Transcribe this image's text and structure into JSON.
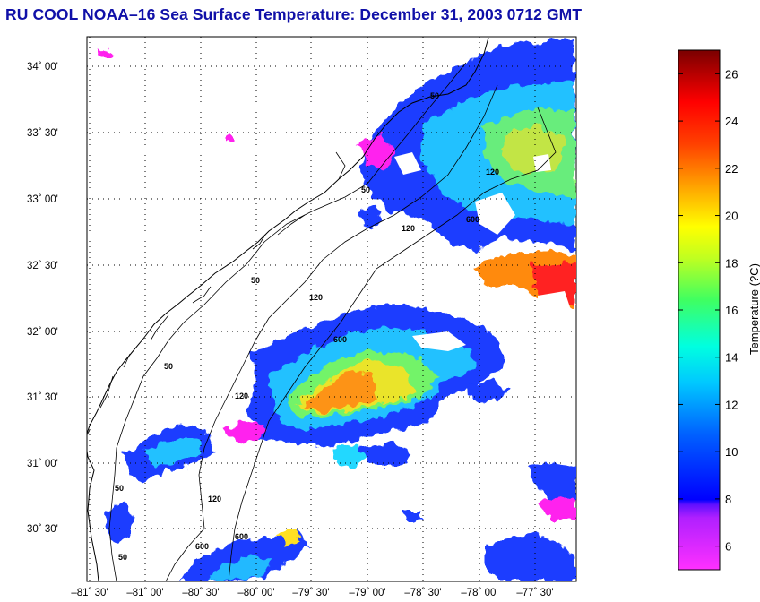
{
  "title": "RU COOL  NOAA–16  Sea Surface Temperature:  December 31, 2003 0712 GMT",
  "lat_labels": [
    "34˚ 00'",
    "33˚ 30'",
    "33˚ 00'",
    "32˚ 30'",
    "32˚ 00'",
    "31˚ 30'",
    "31˚ 00'",
    "30˚ 30'"
  ],
  "lon_labels": [
    "–81˚ 30'",
    "–81˚ 00'",
    "–80˚ 30'",
    "–80˚ 00'",
    "–79˚ 30'",
    "–79˚ 00'",
    "–78˚ 30'",
    "–78˚ 00'",
    "–77˚ 30'"
  ],
  "colorbar": {
    "title": "Temperature (?C)",
    "ticks": [
      "26",
      "24",
      "22",
      "20",
      "18",
      "16",
      "14",
      "12",
      "10",
      "8",
      "6"
    ],
    "range": [
      5,
      27
    ]
  },
  "contour_labels": [
    "50",
    "50",
    "50",
    "50",
    "50",
    "120",
    "120",
    "120",
    "120",
    "120",
    "600",
    "600",
    "600",
    "600",
    "50"
  ],
  "colors": {
    "title": "#1010a8",
    "magenta": "#ff22ee",
    "blue": "#1a3cff",
    "cyan": "#22d8ff",
    "green": "#88ff44",
    "yellow": "#ffe020",
    "orange": "#ff8a10",
    "red": "#ff2020"
  }
}
